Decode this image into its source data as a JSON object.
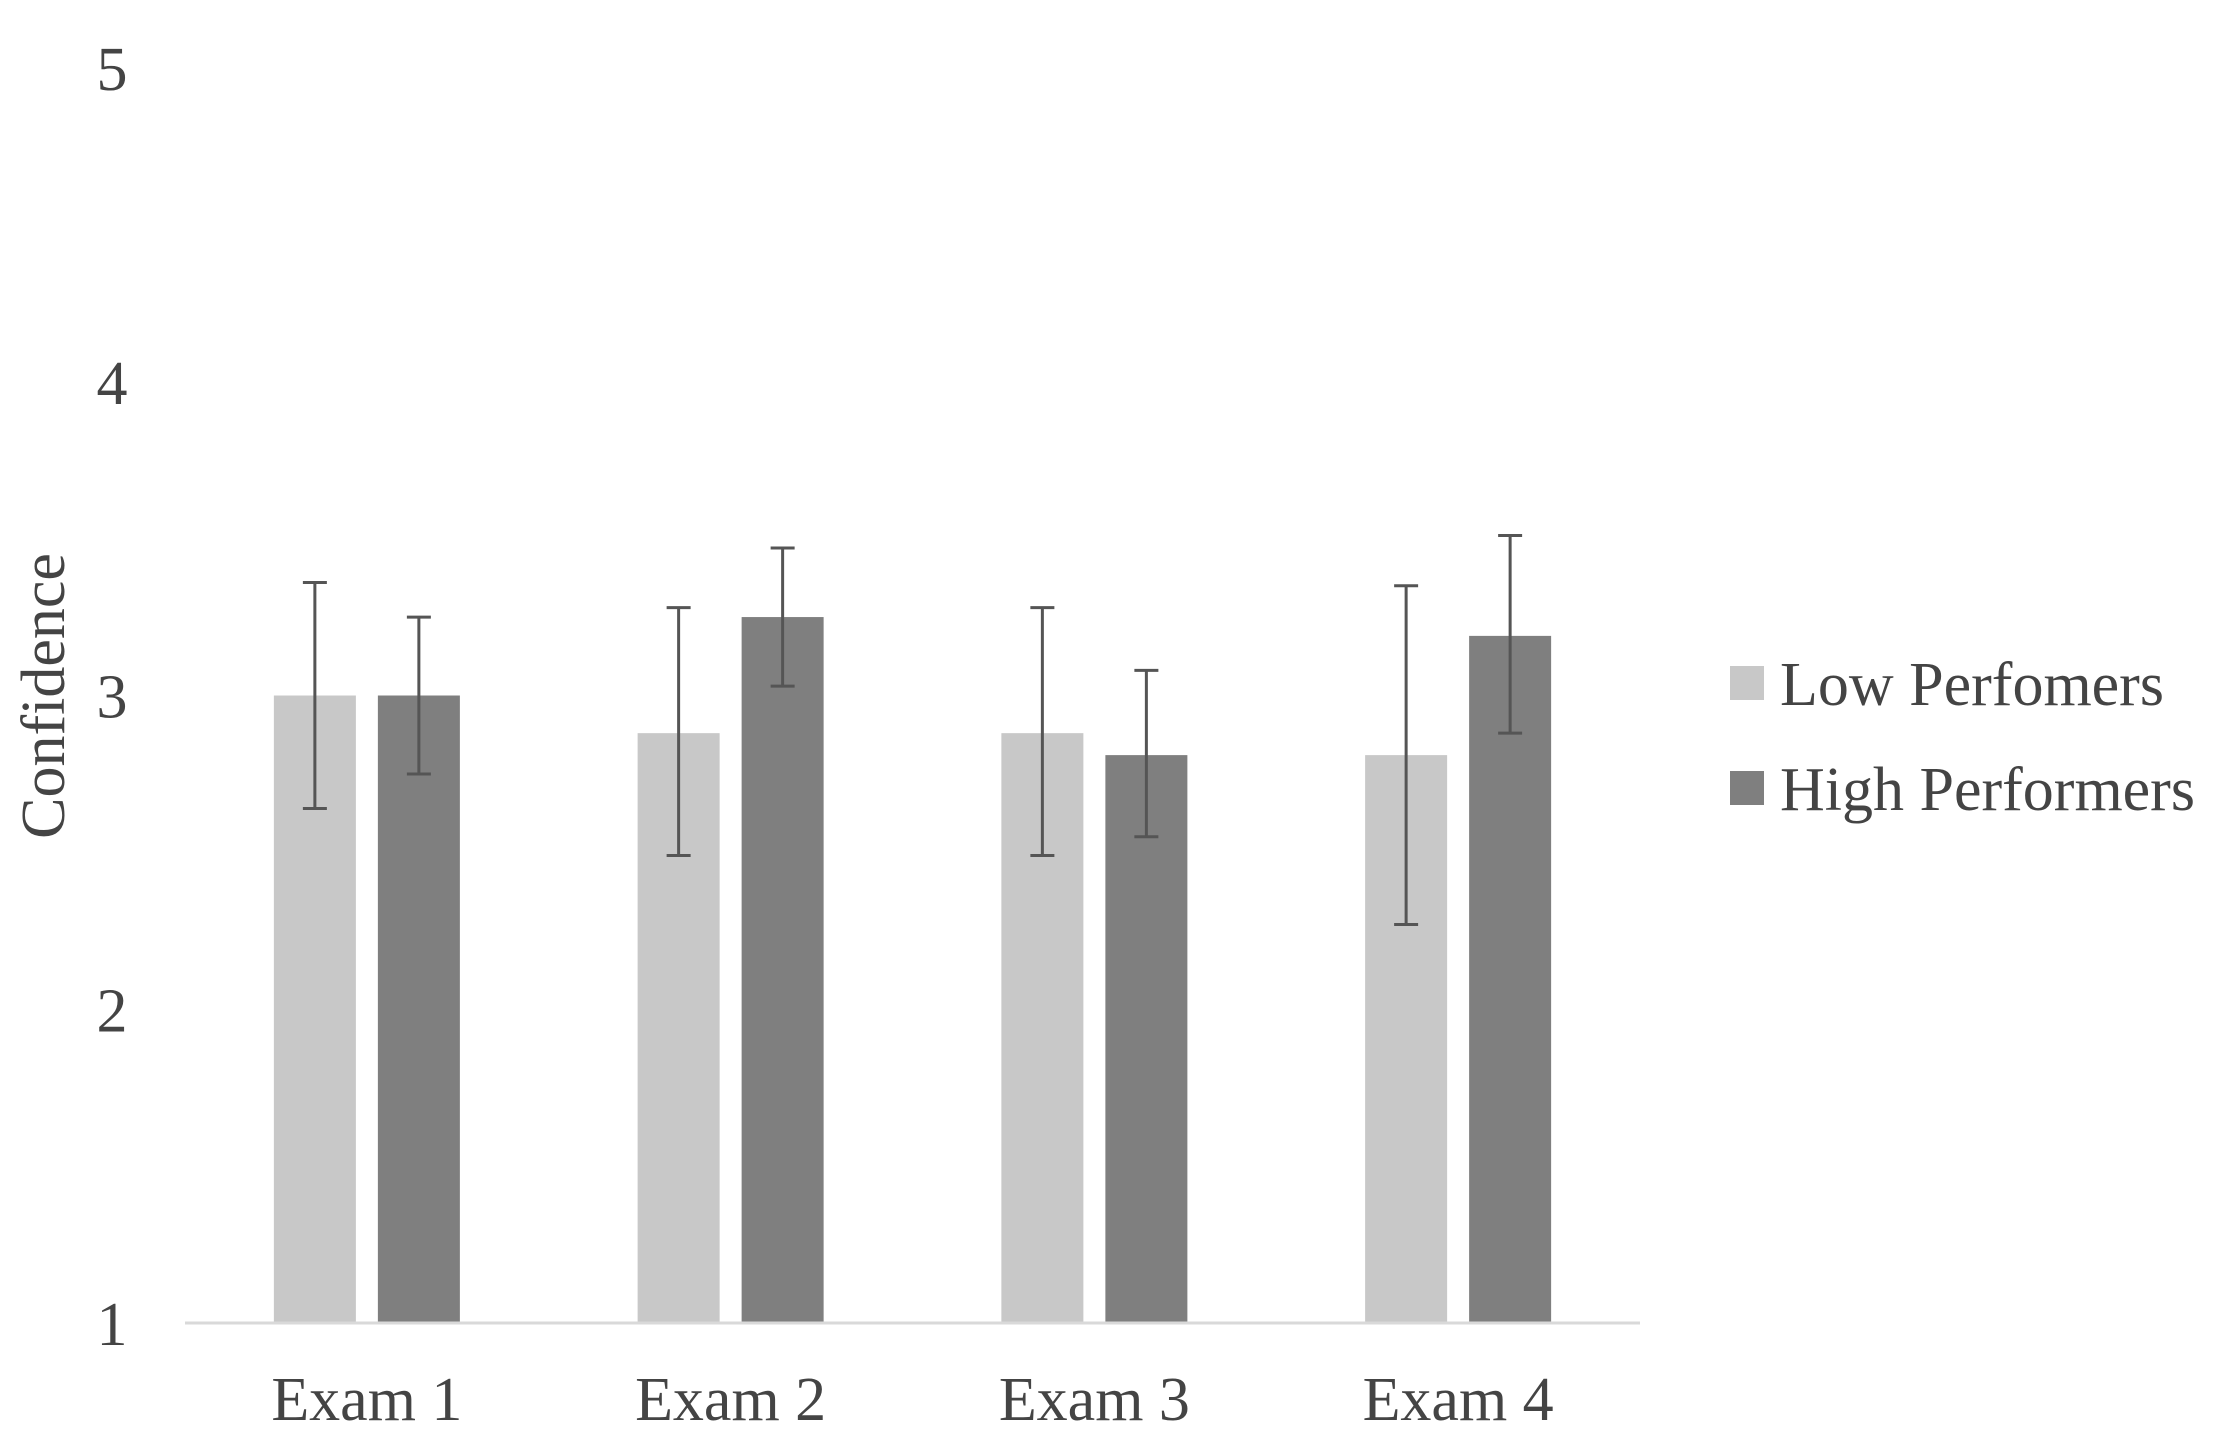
{
  "chart_data": {
    "type": "bar",
    "title": "",
    "xlabel": "",
    "ylabel": "Confidence",
    "ylim": [
      1,
      5
    ],
    "yticks": [
      1,
      2,
      3,
      4,
      5
    ],
    "categories": [
      "Exam 1",
      "Exam 2",
      "Exam 3",
      "Exam 4"
    ],
    "series": [
      {
        "name": "Low Perfomers",
        "color": "#c8c8c8",
        "values": [
          3.0,
          2.88,
          2.88,
          2.81
        ],
        "error_low": [
          2.64,
          2.49,
          2.49,
          2.27
        ],
        "error_high": [
          3.36,
          3.28,
          3.28,
          3.35
        ]
      },
      {
        "name": "High Performers",
        "color": "#7f7f7f",
        "values": [
          3.0,
          3.25,
          2.81,
          3.19
        ],
        "error_low": [
          2.75,
          3.03,
          2.55,
          2.88
        ],
        "error_high": [
          3.25,
          3.47,
          3.08,
          3.51
        ]
      }
    ],
    "grid": false,
    "legend_position": "right",
    "error_bars": true
  }
}
